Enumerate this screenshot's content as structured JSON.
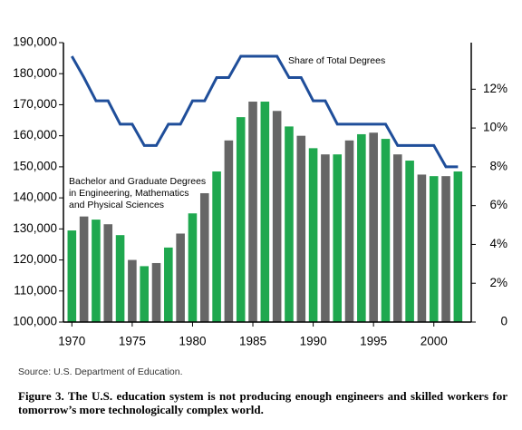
{
  "chart_data": {
    "type": "bar",
    "x": [
      1970,
      1971,
      1972,
      1973,
      1974,
      1975,
      1976,
      1977,
      1978,
      1979,
      1980,
      1981,
      1982,
      1983,
      1984,
      1985,
      1986,
      1987,
      1988,
      1989,
      1990,
      1991,
      1992,
      1993,
      1994,
      1995,
      1996,
      1997,
      1998,
      1999,
      2000,
      2001,
      2002
    ],
    "series": [
      {
        "colors": [
          "#1fa84f",
          "#666666",
          "#1fa84f",
          "#666666",
          "#1fa84f",
          "#666666",
          "#1fa84f",
          "#666666",
          "#1fa84f",
          "#666666",
          "#1fa84f",
          "#666666",
          "#1fa84f",
          "#666666",
          "#1fa84f",
          "#666666",
          "#1fa84f",
          "#666666",
          "#1fa84f",
          "#666666",
          "#1fa84f",
          "#666666",
          "#1fa84f",
          "#666666",
          "#1fa84f",
          "#666666",
          "#1fa84f",
          "#666666",
          "#1fa84f",
          "#666666",
          "#1fa84f",
          "#666666",
          "#1fa84f"
        ],
        "values": [
          129500,
          134000,
          133000,
          131500,
          128000,
          120000,
          118000,
          119000,
          124000,
          128500,
          135000,
          141500,
          148500,
          158500,
          166000,
          171000,
          171000,
          168000,
          163000,
          160000,
          156000,
          154000,
          154000,
          158500,
          160500,
          161000,
          159000,
          154000,
          152000,
          147500,
          147000,
          147000,
          148500
        ]
      },
      {
        "axis": "y2",
        "color": "#1f4e9a",
        "values": [
          13.7,
          12.6,
          11.4,
          11.4,
          10.2,
          10.2,
          9.1,
          9.1,
          10.2,
          10.2,
          11.4,
          11.4,
          12.6,
          12.6,
          13.7,
          13.7,
          13.7,
          13.7,
          12.6,
          12.6,
          11.4,
          11.4,
          10.2,
          10.2,
          10.2,
          10.2,
          10.2,
          9.1,
          9.1,
          9.1,
          9.1,
          8.0,
          8.0
        ]
      }
    ],
    "xlim": [
      1969.3,
      2003.1
    ],
    "xticks": [
      1970,
      1975,
      1980,
      1985,
      1990,
      1995,
      2000
    ],
    "ylim": [
      100000,
      190000
    ],
    "yticks": [
      {
        "value": 100000,
        "label": "100,000"
      },
      {
        "value": 110000,
        "label": "110,000"
      },
      {
        "value": 120000,
        "label": "120,000"
      },
      {
        "value": 130000,
        "label": "130,000"
      },
      {
        "value": 140000,
        "label": "140,000"
      },
      {
        "value": 150000,
        "label": "150,000"
      },
      {
        "value": 160000,
        "label": "160,000"
      },
      {
        "value": 170000,
        "label": "170,000"
      },
      {
        "value": 180000,
        "label": "180,000"
      },
      {
        "value": 190000,
        "label": "190,000"
      }
    ],
    "y2lim": [
      0,
      14.4
    ],
    "y2ticks": [
      0,
      {
        "value": 2,
        "label": "2%"
      },
      {
        "value": 4,
        "label": "4%"
      },
      {
        "value": 6,
        "label": "6%"
      },
      {
        "value": 8,
        "label": "8%"
      },
      {
        "value": 10,
        "label": "10%"
      },
      {
        "value": 12,
        "label": "12%"
      }
    ],
    "annotations": [
      "Share of Total Degrees",
      "Bachelor and Graduate Degrees",
      "in Engineering, Mathematics",
      "and Physical Sciences"
    ],
    "source": "Source: U.S. Department of Education.",
    "caption": "Figure 3. The U.S. education system is not producing enough engineers and skilled workers for tomorrow’s more technologically complex world."
  }
}
